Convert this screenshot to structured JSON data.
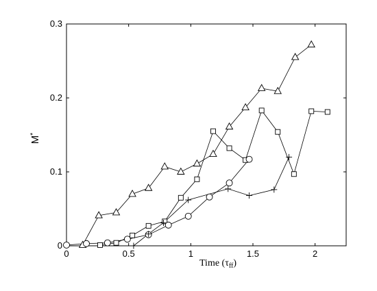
{
  "chart_data": {
    "type": "line",
    "xlabel": "Time (τ",
    "xlabel_sub": "ff",
    "xlabel_close": ")",
    "ylabel": "M",
    "ylabel_sub": "*",
    "xlim": [
      0,
      2.25
    ],
    "ylim": [
      0,
      0.3
    ],
    "xticks": [
      0,
      0.5,
      1,
      1.5,
      2
    ],
    "xtick_labels": [
      "0",
      "0.5",
      "1",
      "1.5",
      "2"
    ],
    "yticks": [
      0,
      0.1,
      0.2,
      0.3
    ],
    "ytick_labels": [
      "0",
      "0.1",
      "0.2",
      "0.3"
    ],
    "grid": false,
    "series": [
      {
        "marker": "triangle",
        "x": [
          0.13,
          0.26,
          0.4,
          0.53,
          0.66,
          0.79,
          0.92,
          1.05,
          1.18,
          1.31,
          1.44,
          1.57,
          1.7,
          1.84,
          1.97
        ],
        "y": [
          0.001,
          0.041,
          0.045,
          0.07,
          0.078,
          0.107,
          0.1,
          0.111,
          0.124,
          0.161,
          0.187,
          0.213,
          0.209,
          0.255,
          0.272
        ]
      },
      {
        "marker": "square",
        "x": [
          0.27,
          0.4,
          0.53,
          0.66,
          0.79,
          0.92,
          1.05,
          1.18,
          1.31,
          1.44,
          1.57,
          1.7,
          1.83,
          1.97,
          2.1
        ],
        "y": [
          0.001,
          0.004,
          0.014,
          0.027,
          0.033,
          0.065,
          0.09,
          0.155,
          0.132,
          0.116,
          0.183,
          0.154,
          0.097,
          0.182,
          0.181
        ]
      },
      {
        "marker": "circle",
        "x": [
          0.0,
          0.16,
          0.33,
          0.49,
          0.66,
          0.82,
          0.98,
          1.15,
          1.31,
          1.47
        ],
        "y": [
          0.001,
          0.003,
          0.004,
          0.009,
          0.015,
          0.028,
          0.04,
          0.066,
          0.085,
          0.117
        ]
      },
      {
        "marker": "plus",
        "x": [
          0.54,
          0.66,
          0.78,
          0.98,
          1.3,
          1.47,
          1.67,
          1.79
        ],
        "y": [
          0.0,
          0.016,
          0.031,
          0.062,
          0.077,
          0.068,
          0.076,
          0.12
        ]
      }
    ]
  }
}
